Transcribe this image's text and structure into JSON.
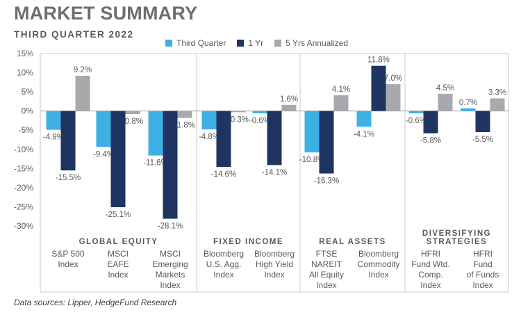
{
  "header": {
    "title": "MARKET SUMMARY",
    "subtitle": "THIRD QUARTER 2022"
  },
  "footer": {
    "source_note": "Data sources: Lipper, HedgeFund Research"
  },
  "colors": {
    "third_quarter": "#3fb0e4",
    "one_year": "#1f3461",
    "five_year": "#a7a9ac",
    "panel_border": "#c8c8c8",
    "zero_line": "#a0a0a0",
    "text": "#58595b"
  },
  "chart_data": {
    "type": "bar",
    "title": "",
    "xlabel": "",
    "ylabel": "",
    "ylim": [
      -30,
      15
    ],
    "yticks": [
      15,
      10,
      5,
      0,
      -5,
      -10,
      -15,
      -20,
      -25,
      -30
    ],
    "ytick_labels": [
      "15%",
      "10%",
      "5%",
      "0%",
      "-5%",
      "-10%",
      "-15%",
      "-20%",
      "-25%",
      "-30%"
    ],
    "grid": false,
    "legend_position": "top",
    "series": [
      {
        "name": "Third Quarter",
        "color_key": "third_quarter"
      },
      {
        "name": "1 Yr",
        "color_key": "one_year"
      },
      {
        "name": "5 Yrs Annualized",
        "color_key": "five_year"
      }
    ],
    "groups": [
      {
        "title": [
          "GLOBAL EQUITY"
        ],
        "categories": [
          {
            "label": [
              "S&P 500",
              "Index"
            ],
            "values": [
              -4.9,
              -15.5,
              9.2
            ],
            "labels": [
              "-4.9%",
              "-15.5%",
              "9.2%"
            ]
          },
          {
            "label": [
              "MSCI",
              "EAFE",
              "Index"
            ],
            "values": [
              -9.4,
              -25.1,
              -0.8
            ],
            "labels": [
              "-9.4%",
              "-25.1%",
              "-0.8%"
            ]
          },
          {
            "label": [
              "MSCI",
              "Emerging",
              "Markets",
              "Index"
            ],
            "values": [
              -11.6,
              -28.1,
              -1.8
            ],
            "labels": [
              "-11.6%",
              "-28.1%",
              "-1.8%"
            ]
          }
        ]
      },
      {
        "title": [
          "FIXED INCOME"
        ],
        "categories": [
          {
            "label": [
              "Bloomberg",
              "U.S. Agg.",
              "Index"
            ],
            "values": [
              -4.8,
              -14.6,
              -0.3
            ],
            "labels": [
              "-4.8%",
              "-14.6%",
              "-0.3%"
            ]
          },
          {
            "label": [
              "Bloomberg",
              "High Yield",
              "Index"
            ],
            "values": [
              -0.6,
              -14.1,
              1.6
            ],
            "labels": [
              "-0.6%",
              "-14.1%",
              "1.6%"
            ]
          }
        ]
      },
      {
        "title": [
          "REAL ASSETS"
        ],
        "categories": [
          {
            "label": [
              "FTSE",
              "NAREIT",
              "All Equity",
              "Index"
            ],
            "values": [
              -10.8,
              -16.3,
              4.1
            ],
            "labels": [
              "-10.8%",
              "-16.3%",
              "4.1%"
            ]
          },
          {
            "label": [
              "Bloomberg",
              "Commodity",
              "Index"
            ],
            "values": [
              -4.1,
              11.8,
              7.0
            ],
            "labels": [
              "-4.1%",
              "11.8%",
              "7.0%"
            ]
          }
        ]
      },
      {
        "title": [
          "DIVERSIFYING",
          "STRATEGIES"
        ],
        "categories": [
          {
            "label": [
              "HFRI",
              "Fund Wtd.",
              "Comp.",
              "Index"
            ],
            "values": [
              -0.6,
              -5.8,
              4.5
            ],
            "labels": [
              "-0.6%",
              "-5.8%",
              "4.5%"
            ]
          },
          {
            "label": [
              "HFRI",
              "Fund",
              "of Funds",
              "Index"
            ],
            "values": [
              0.7,
              -5.5,
              3.3
            ],
            "labels": [
              "0.7%",
              "-5.5%",
              "3.3%"
            ]
          }
        ]
      }
    ]
  }
}
